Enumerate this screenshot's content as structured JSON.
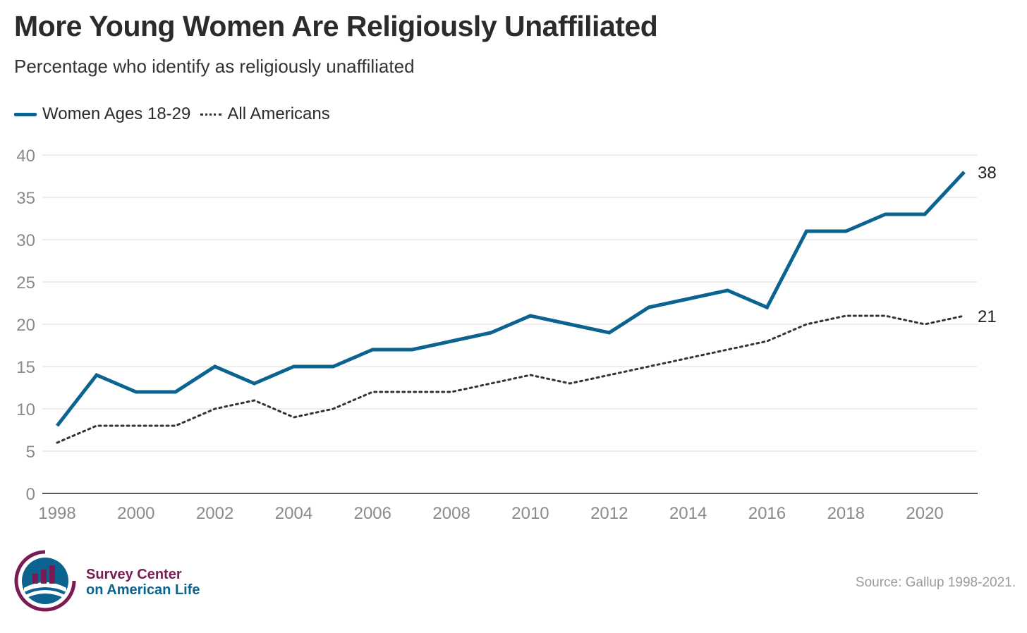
{
  "header": {
    "title": "More Young Women Are Religiously Unaffiliated",
    "subtitle": "Percentage who identify as religiously unaffiliated"
  },
  "legend": {
    "items": [
      {
        "label": "Women Ages 18-29",
        "style": "solid",
        "color": "#0b6390"
      },
      {
        "label": "All Americans",
        "style": "dotted",
        "color": "#333333"
      }
    ]
  },
  "chart_data": {
    "type": "line",
    "title": "More Young Women Are Religiously Unaffiliated",
    "subtitle": "Percentage who identify as religiously unaffiliated",
    "x": [
      1998,
      1999,
      2000,
      2001,
      2002,
      2003,
      2004,
      2005,
      2006,
      2007,
      2008,
      2009,
      2010,
      2011,
      2012,
      2013,
      2014,
      2015,
      2016,
      2017,
      2018,
      2019,
      2020,
      2021
    ],
    "x_tick_labels": [
      "1998",
      "2000",
      "2002",
      "2004",
      "2006",
      "2008",
      "2010",
      "2012",
      "2014",
      "2016",
      "2018",
      "2020"
    ],
    "y_ticks": [
      0,
      5,
      10,
      15,
      20,
      25,
      30,
      35,
      40
    ],
    "ylim": [
      0,
      40
    ],
    "xlim": [
      1998,
      2021
    ],
    "grid": true,
    "legend_position": "top-left",
    "series": [
      {
        "name": "Women Ages 18-29",
        "style": "solid",
        "color": "#0b6390",
        "values": [
          8,
          14,
          12,
          12,
          15,
          13,
          15,
          15,
          17,
          17,
          18,
          19,
          21,
          20,
          19,
          22,
          23,
          24,
          22,
          31,
          31,
          33,
          33,
          38
        ],
        "end_label": "38"
      },
      {
        "name": "All Americans",
        "style": "dotted",
        "color": "#333333",
        "values": [
          6,
          8,
          8,
          8,
          10,
          11,
          9,
          10,
          12,
          12,
          12,
          13,
          14,
          13,
          14,
          15,
          16,
          17,
          18,
          20,
          21,
          21,
          20,
          21
        ],
        "end_label": "21"
      }
    ]
  },
  "footer": {
    "logo_line1": "Survey Center",
    "logo_line2": "on American Life",
    "source": "Source: Gallup 1998-2021.",
    "logo_colors": {
      "maroon": "#7a1c54",
      "blue": "#0b6390"
    }
  }
}
